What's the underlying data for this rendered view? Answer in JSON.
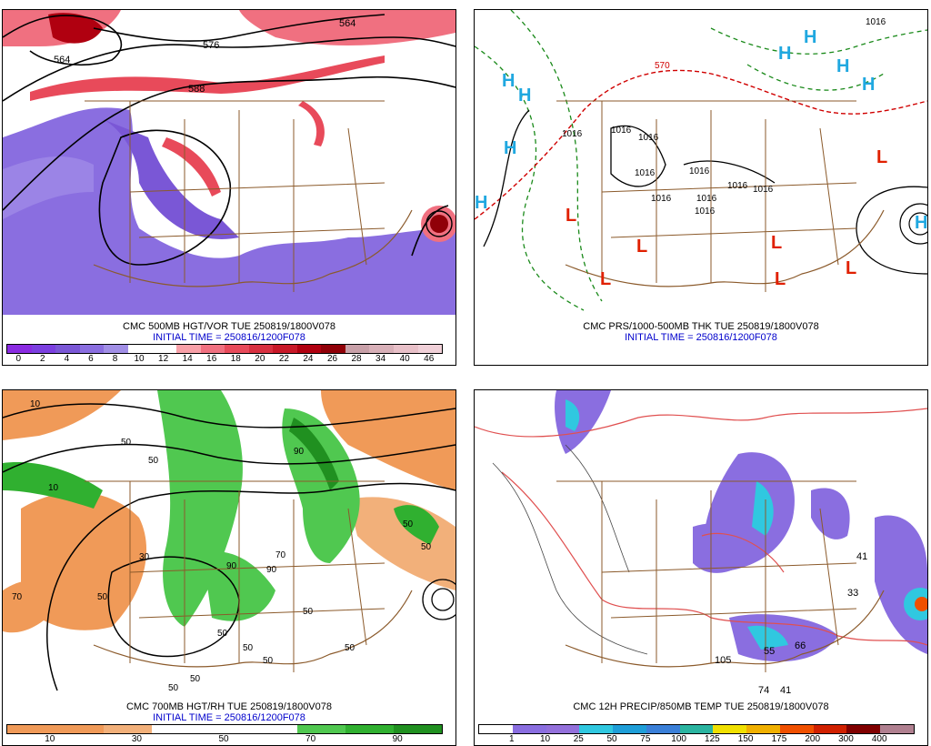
{
  "panels": [
    {
      "caption": "CMC 500MB HGT/VOR TUE 250819/1800V078",
      "initial": "INITIAL TIME = 250816/1200F078",
      "contours": [
        "564",
        "576",
        "588",
        "564"
      ],
      "colors": [
        "#8a2be2",
        "#7b3fe0",
        "#7a57d6",
        "#8a6ee0",
        "#a18fe6",
        "#ffffff",
        "#ffffff",
        "#f8a0a8",
        "#f07080",
        "#e84a5a",
        "#d83040",
        "#c81828",
        "#b00010",
        "#900008",
        "#c8a0a8",
        "#d8b0b8",
        "#e8c0c8",
        "#f0d0d8"
      ],
      "ticks": [
        "0",
        "2",
        "4",
        "6",
        "8",
        "10",
        "12",
        "14",
        "16",
        "18",
        "20",
        "22",
        "24",
        "26",
        "28",
        "34",
        "40",
        "46"
      ]
    },
    {
      "caption": "CMC PRS/1000-500MB THK TUE 250819/1800V078",
      "initial": "INITIAL TIME = 250816/1200F078",
      "highs": [
        "H",
        "H",
        "H",
        "H",
        "H",
        "H",
        "H",
        "H",
        "H"
      ],
      "lows": [
        "L",
        "L",
        "L",
        "L",
        "L",
        "L",
        "L"
      ],
      "isobars": [
        "1016",
        "1016",
        "1016",
        "1016",
        "1016",
        "1016",
        "1016",
        "1016",
        "1016",
        "1016",
        "1016"
      ],
      "thickness": [
        "570"
      ]
    },
    {
      "caption": "CMC 700MB HGT/RH TUE 250819/1800V078",
      "initial": "INITIAL TIME = 250816/1200F078",
      "colors": [
        "#f09a58",
        "#f09a58",
        "#f2b07a",
        "#ffffff",
        "#ffffff",
        "#ffffff",
        "#50c850",
        "#30b030",
        "#209020"
      ],
      "ticks": [
        "10",
        "30",
        "50",
        "70",
        "90"
      ],
      "rh_labels": [
        "10",
        "10",
        "50",
        "50",
        "50",
        "50",
        "50",
        "50",
        "50",
        "50",
        "50",
        "50",
        "50",
        "50",
        "90",
        "90",
        "90",
        "70",
        "70",
        "30"
      ]
    },
    {
      "caption": "CMC 12H PRECIP/850MB TEMP TUE 250819/1800V078",
      "colors": [
        "#ffffff",
        "#8a6ee0",
        "#9370db",
        "#30c8e0",
        "#1e9ed8",
        "#3a7fd8",
        "#2ab4a0",
        "#f0e000",
        "#f0b000",
        "#f05000",
        "#d02000",
        "#800000",
        "#b08090"
      ],
      "ticks": [
        "1",
        "10",
        "25",
        "50",
        "75",
        "100",
        "125",
        "150",
        "175",
        "200",
        "300",
        "400"
      ],
      "values": [
        "74",
        "41",
        "105",
        "55",
        "66",
        "41",
        "33"
      ]
    }
  ]
}
